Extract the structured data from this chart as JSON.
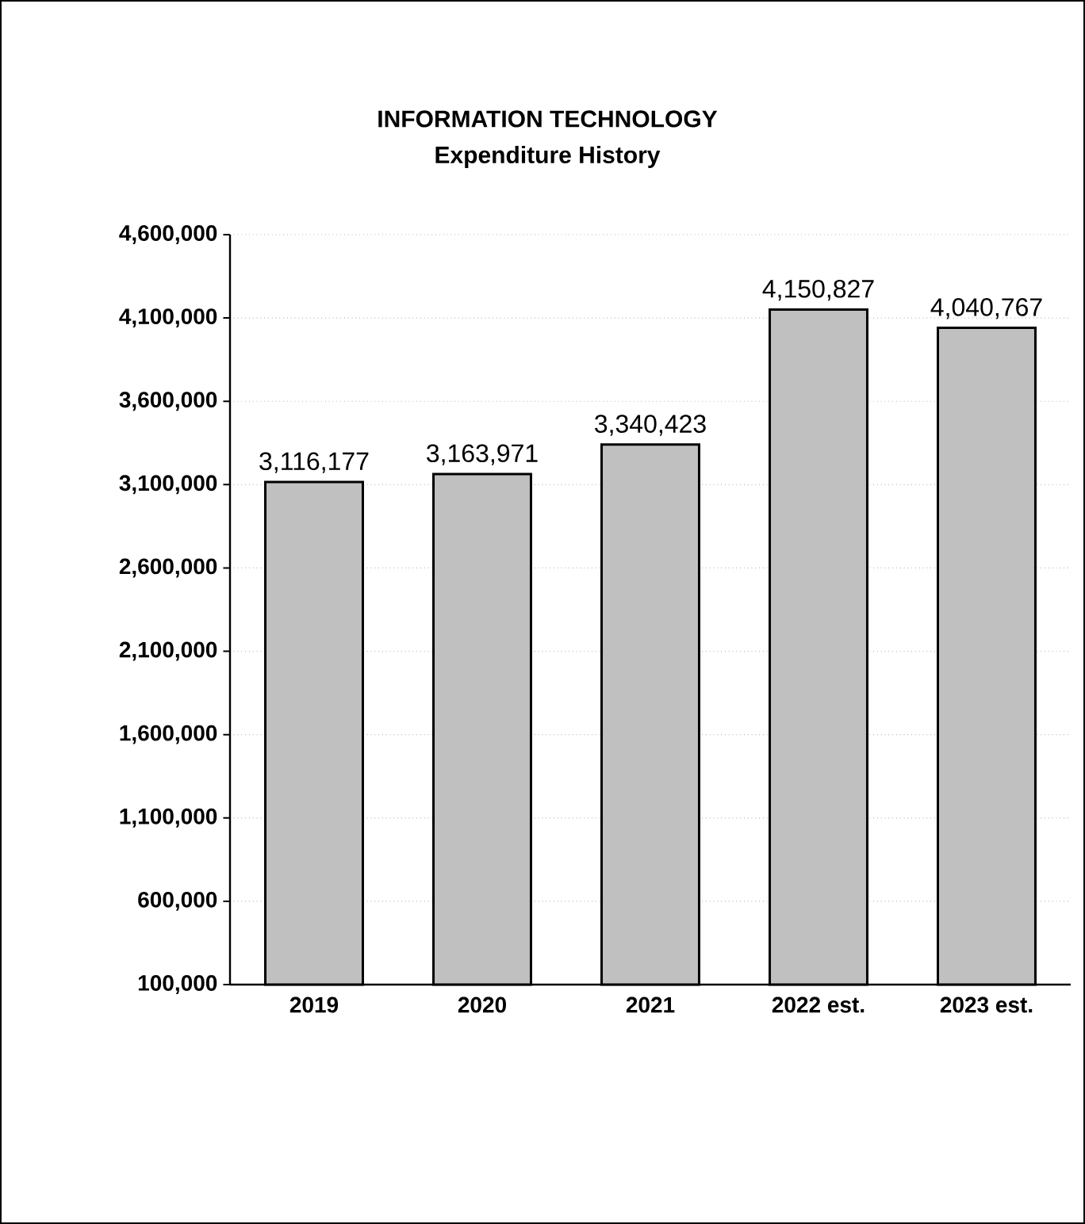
{
  "chart_data": {
    "type": "bar",
    "title": "INFORMATION TECHNOLOGY",
    "subtitle": "Expenditure History",
    "categories": [
      "2019",
      "2020",
      "2021",
      "2022 est.",
      "2023 est."
    ],
    "values": [
      3116177,
      3163971,
      3340423,
      4150827,
      4040767
    ],
    "value_labels": [
      "3,116,177",
      "3,163,971",
      "3,340,423",
      "4,150,827",
      "4,040,767"
    ],
    "color": "#c0c0c0",
    "ylim": [
      100000,
      4600000
    ],
    "yticks": [
      {
        "value": 100000,
        "label": "100,000"
      },
      {
        "value": 600000,
        "label": "600,000"
      },
      {
        "value": 1100000,
        "label": "1,100,000"
      },
      {
        "value": 1600000,
        "label": "1,600,000"
      },
      {
        "value": 2100000,
        "label": "2,100,000"
      },
      {
        "value": 2600000,
        "label": "2,600,000"
      },
      {
        "value": 3100000,
        "label": "3,100,000"
      },
      {
        "value": 3600000,
        "label": "3,600,000"
      },
      {
        "value": 4100000,
        "label": "4,100,000"
      },
      {
        "value": 4600000,
        "label": "4,600,000"
      }
    ],
    "grid": "y"
  }
}
